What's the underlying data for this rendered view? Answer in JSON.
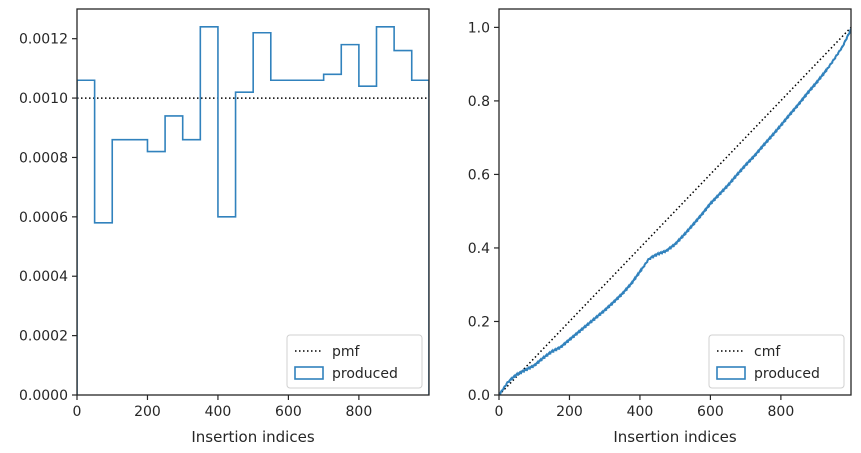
{
  "chart_data": [
    {
      "type": "step",
      "xlabel": "Insertion indices",
      "ylabel": "",
      "xlim": [
        0,
        999
      ],
      "ylim": [
        0,
        0.0013
      ],
      "xticks": [
        0,
        200,
        400,
        600,
        800
      ],
      "xtick_labels": [
        "0",
        "200",
        "400",
        "600",
        "800"
      ],
      "yticks": [
        0,
        0.0002,
        0.0004,
        0.0006,
        0.0008,
        0.001,
        0.0012
      ],
      "ytick_labels": [
        "0.0000",
        "0.0002",
        "0.0004",
        "0.0006",
        "0.0008",
        "0.0010",
        "0.0012"
      ],
      "grid": false,
      "legend_position": "lower-right",
      "series": [
        {
          "name": "pmf",
          "kind": "hline",
          "style": "dotted",
          "color": "#000000",
          "y": 0.001
        },
        {
          "name": "produced",
          "kind": "histogram-step",
          "color": "#3182bd",
          "bin_edges": [
            0,
            50,
            100,
            150,
            200,
            250,
            300,
            350,
            400,
            450,
            500,
            550,
            600,
            650,
            700,
            750,
            800,
            850,
            900,
            950,
            999
          ],
          "values": [
            0.00106,
            0.00058,
            0.00086,
            0.00086,
            0.00082,
            0.00094,
            0.00086,
            0.00124,
            0.0006,
            0.00102,
            0.00122,
            0.00106,
            0.00106,
            0.00106,
            0.00108,
            0.00118,
            0.00104,
            0.00124,
            0.00116,
            0.00106
          ]
        }
      ]
    },
    {
      "type": "step",
      "xlabel": "Insertion indices",
      "ylabel": "",
      "xlim": [
        0,
        999
      ],
      "ylim": [
        0,
        1.05
      ],
      "xticks": [
        0,
        200,
        400,
        600,
        800
      ],
      "xtick_labels": [
        "0",
        "200",
        "400",
        "600",
        "800"
      ],
      "yticks": [
        0,
        0.2,
        0.4,
        0.6,
        0.8,
        1.0
      ],
      "ytick_labels": [
        "0.0",
        "0.2",
        "0.4",
        "0.6",
        "0.8",
        "1.0"
      ],
      "grid": false,
      "legend_position": "lower-right",
      "series": [
        {
          "name": "cmf",
          "kind": "line",
          "style": "dotted",
          "color": "#000000",
          "x": [
            0,
            999
          ],
          "y": [
            0,
            1.0
          ]
        },
        {
          "name": "produced",
          "kind": "cumulative-step",
          "color": "#3182bd",
          "x": [
            0,
            25,
            50,
            75,
            100,
            125,
            150,
            175,
            200,
            225,
            250,
            275,
            300,
            325,
            350,
            375,
            400,
            425,
            450,
            475,
            500,
            525,
            550,
            575,
            600,
            625,
            650,
            675,
            700,
            725,
            750,
            775,
            800,
            825,
            850,
            875,
            900,
            925,
            950,
            975,
            999
          ],
          "y": [
            0,
            0.035,
            0.055,
            0.068,
            0.08,
            0.1,
            0.118,
            0.13,
            0.15,
            0.17,
            0.19,
            0.21,
            0.23,
            0.252,
            0.275,
            0.302,
            0.335,
            0.37,
            0.383,
            0.392,
            0.41,
            0.435,
            0.462,
            0.49,
            0.52,
            0.545,
            0.57,
            0.598,
            0.625,
            0.65,
            0.678,
            0.705,
            0.733,
            0.762,
            0.79,
            0.82,
            0.848,
            0.878,
            0.912,
            0.948,
            0.995
          ]
        }
      ]
    }
  ]
}
